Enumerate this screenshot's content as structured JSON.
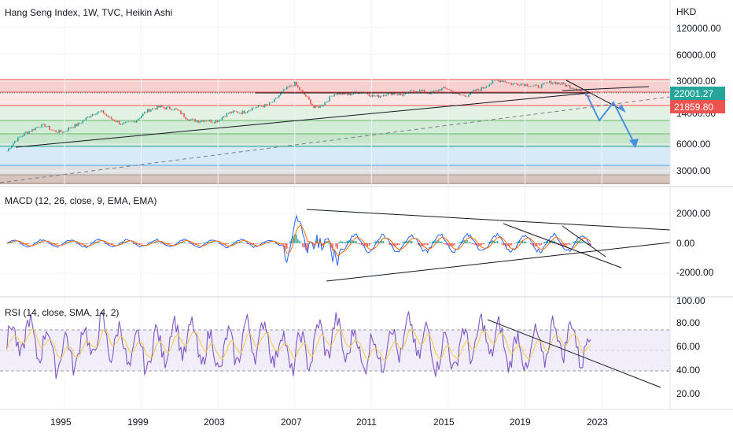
{
  "colors": {
    "up": "#26a69a",
    "down": "#ef5350",
    "macd_line": "#2962ff",
    "signal_line": "#ff6d00",
    "rsi_line": "#7e57c2",
    "rsi_ma": "#f2c94c",
    "arrow": "#4a90e2",
    "last_price_bg": "#26a69a",
    "prev_price_bg": "#ef5350",
    "fib_zones": [
      "#f9d0d0",
      "#fbe6e6",
      "#e3f2e3",
      "#d3ecd7",
      "#c8e6cc",
      "#d6eaf8",
      "#e0e0e0",
      "#d7c5bd"
    ]
  },
  "panes": {
    "price": {
      "title": "Hang Seng Index, 1W, TVC, Heikin Ashi",
      "currency": "HKD",
      "scale": "log",
      "ticks": [
        "120000.00",
        "60000.00",
        "30000.00",
        "6000.00",
        "3000.00"
      ],
      "last_price": "22001.27",
      "prev_price": "21859.80",
      "hidden_tick": "14000.00"
    },
    "macd": {
      "title": "MACD (12, 26, close, 9, EMA, EMA)",
      "ticks": [
        "2000.00",
        "0.00",
        "-2000.00"
      ]
    },
    "rsi": {
      "title": "RSI (14, close, SMA, 14, 2)",
      "ticks": [
        "100.00",
        "80.00",
        "60.00",
        "40.00",
        "20.00"
      ],
      "upper_band": 70,
      "lower_band": 30
    }
  },
  "time_axis": [
    "1995",
    "1999",
    "2003",
    "2007",
    "2011",
    "2015",
    "2019",
    "2023"
  ],
  "chart_data": {
    "type": "line",
    "title": "Hang Seng Index, 1W, TVC, Heikin Ashi",
    "x": [
      1992,
      1993,
      1994,
      1995,
      1996,
      1997,
      1998,
      1999,
      2000,
      2001,
      2002,
      2003,
      2004,
      2005,
      2006,
      2007,
      2008,
      2009,
      2010,
      2011,
      2012,
      2013,
      2014,
      2015,
      2016,
      2017,
      2018,
      2019,
      2020,
      2021,
      2022
    ],
    "series": [
      {
        "values": [
          5000,
          8500,
          9500,
          8000,
          11500,
          14000,
          9500,
          12500,
          16500,
          13500,
          10500,
          11500,
          14000,
          15000,
          19000,
          30000,
          15000,
          21000,
          23000,
          21500,
          21500,
          23000,
          23500,
          24500,
          20500,
          28500,
          31000,
          27000,
          28000,
          29500,
          22001.27
        ]
      }
    ]
  }
}
